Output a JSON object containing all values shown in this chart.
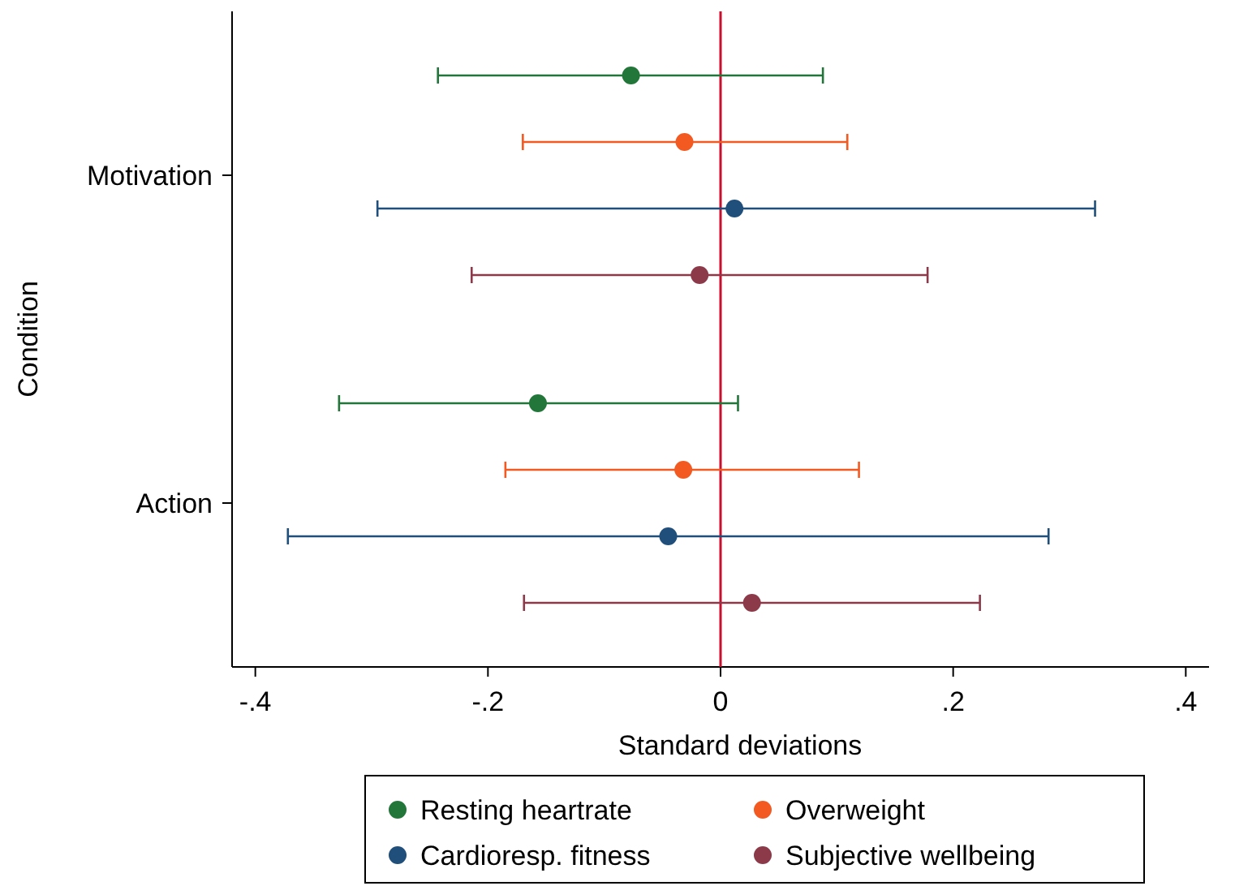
{
  "chart_data": {
    "type": "scatter",
    "orientation": "horizontal",
    "xlabel": "Standard deviations",
    "ylabel": "Condition",
    "categories": [
      "Motivation",
      "Action"
    ],
    "series": [
      {
        "name": "Resting heartrate",
        "color": "#22763a",
        "values": [
          -0.077,
          -0.157
        ],
        "errors": [
          [
            -0.243,
            0.088
          ],
          [
            -0.328,
            0.015
          ]
        ]
      },
      {
        "name": "Overweight",
        "color": "#f25a22",
        "values": [
          -0.031,
          -0.032
        ],
        "errors": [
          [
            -0.17,
            0.109
          ],
          [
            -0.185,
            0.119
          ]
        ]
      },
      {
        "name": "Cardioresp. fitness",
        "color": "#1f4f7a",
        "values": [
          0.012,
          -0.045
        ],
        "errors": [
          [
            -0.295,
            0.322
          ],
          [
            -0.372,
            0.282
          ]
        ]
      },
      {
        "name": "Subjective wellbeing",
        "color": "#8c3a4a",
        "values": [
          -0.018,
          0.027
        ],
        "errors": [
          [
            -0.214,
            0.178
          ],
          [
            -0.169,
            0.223
          ]
        ]
      }
    ],
    "xlim": [
      -0.42,
      0.42
    ],
    "xticks": [
      {
        "value": -0.4,
        "label": "-.4"
      },
      {
        "value": -0.2,
        "label": "-.2"
      },
      0,
      {
        "value": 0.2,
        "label": ".2"
      },
      {
        "value": 0.4,
        "label": ".4"
      }
    ],
    "ref_lines": [
      {
        "axis": "x",
        "value": 0,
        "color": "#c8102e"
      }
    ],
    "marker": "circle",
    "legend": "bottom",
    "grid": false
  }
}
